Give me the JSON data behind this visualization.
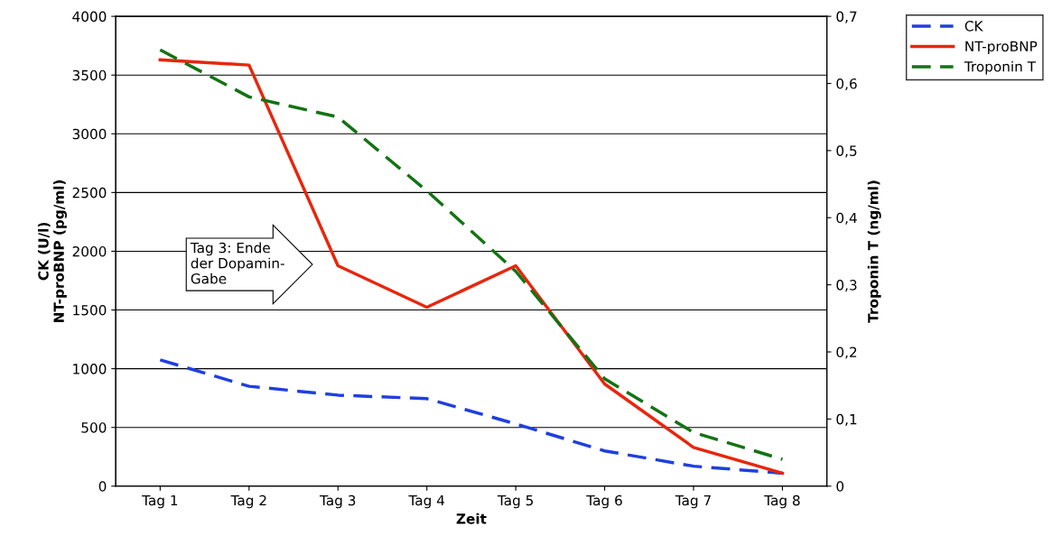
{
  "chart_data": {
    "type": "line",
    "xlabel": "Zeit",
    "ylabel": "CK (U/l)\nNT-proBNP (pg/ml)",
    "y2label": "Troponin T (ng/ml)",
    "categories": [
      "Tag 1",
      "Tag 2",
      "Tag 3",
      "Tag 4",
      "Tag 5",
      "Tag 6",
      "Tag 7",
      "Tag 8"
    ],
    "series": [
      {
        "name": "CK",
        "color": "#1f3fe0",
        "line_style": "dashed",
        "values": [
          1075,
          850,
          775,
          745,
          530,
          300,
          170,
          110
        ]
      },
      {
        "name": "NT-proBNP",
        "color": "#e8260c",
        "line_style": "solid",
        "values": [
          3630,
          3585,
          1877,
          1523,
          1877,
          870,
          330,
          110
        ]
      },
      {
        "name": "Troponin T",
        "color": "#137313",
        "line_style": "dashed",
        "axis": "y2",
        "values": [
          0.65,
          0.58,
          0.55,
          0.44,
          0.32,
          0.16,
          0.08,
          0.04
        ]
      }
    ],
    "ylim": [
      0,
      4000
    ],
    "yticks": [
      0,
      500,
      1000,
      1500,
      2000,
      2500,
      3000,
      3500,
      4000
    ],
    "y2lim": [
      0,
      0.7
    ],
    "y2ticks": [
      0,
      {
        "value": 0.1,
        "label": "0,1"
      },
      {
        "value": 0.2,
        "label": "0,2"
      },
      {
        "value": 0.3,
        "label": "0,3"
      },
      {
        "value": 0.4,
        "label": "0,4"
      },
      {
        "value": 0.5,
        "label": "0,5"
      },
      {
        "value": 0.6,
        "label": "0,6"
      },
      {
        "value": 0.7,
        "label": "0,7"
      }
    ],
    "grid": "y",
    "legend": "top right",
    "marker": "none",
    "annotations": [
      "Tag 3: Ende\nder Dopamin-\nGabe"
    ]
  }
}
